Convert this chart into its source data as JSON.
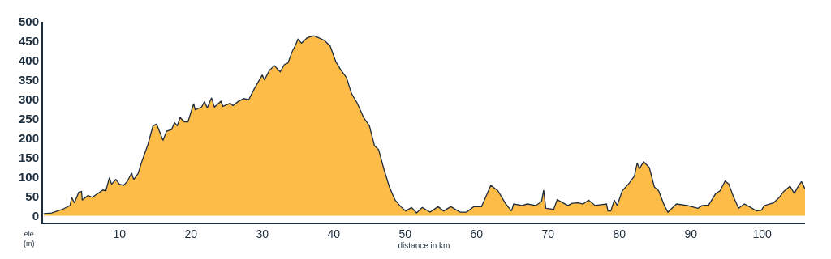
{
  "chart_data": {
    "type": "area",
    "xlabel": "distance in km",
    "ylabel": "ele\n(m)",
    "x": [
      -0.6,
      0.5,
      2,
      3.1,
      3.3,
      3.7,
      4.3,
      4.7,
      4.8,
      5.6,
      6.2,
      7.7,
      8.1,
      8.6,
      8.9,
      9.5,
      10,
      10.6,
      11.1,
      11.7,
      12,
      12.6,
      13.2,
      14,
      14.7,
      15.2,
      15.6,
      16.1,
      16.6,
      17.3,
      17.7,
      18.1,
      18.5,
      19.1,
      19.6,
      20,
      20.4,
      20.6,
      21.5,
      21.9,
      22.3,
      22.9,
      23.3,
      24.2,
      24.5,
      25.5,
      25.9,
      26.6,
      27.4,
      28.1,
      28.9,
      30,
      30.3,
      31,
      31.7,
      32.5,
      33.1,
      33.6,
      34.2,
      34.6,
      35,
      35.5,
      36.3,
      37.2,
      37.9,
      38.7,
      39.5,
      40.3,
      41,
      41.8,
      42.5,
      43.3,
      44.2,
      45,
      45.7,
      46.3,
      47,
      47.8,
      48.6,
      49.4,
      50.1,
      50.9,
      51.6,
      52.4,
      53.5,
      54.6,
      55.4,
      56.4,
      57.7,
      58.6,
      59.6,
      60.7,
      61.1,
      62,
      63,
      64.1,
      64.9,
      65.2,
      66.4,
      67.1,
      68.3,
      69.1,
      69.4,
      69.7,
      70.8,
      71.3,
      72.1,
      72.8,
      73.4,
      74.2,
      74.9,
      75.7,
      76.6,
      78.2,
      78.4,
      78.8,
      79.3,
      79.7,
      80.4,
      81.4,
      82.1,
      82.5,
      82.8,
      83.4,
      84.2,
      84.9,
      85.5,
      86.3,
      86.8,
      88,
      89.5,
      91,
      91.6,
      92.5,
      93.5,
      94.1,
      94.8,
      95.3,
      96,
      96.7,
      97.5,
      98.2,
      99.2,
      99.9,
      100.3,
      101.6,
      102.4,
      103,
      103.9,
      104.5,
      104.9,
      105.5,
      106
    ],
    "series": [
      {
        "color": "#fdbb48",
        "values": [
          5,
          7,
          16,
          26,
          47,
          33,
          60,
          62,
          40,
          52,
          47,
          66,
          64,
          98,
          81,
          93,
          81,
          78,
          88,
          110,
          93,
          108,
          143,
          184,
          232,
          236,
          218,
          194,
          218,
          222,
          240,
          232,
          253,
          242,
          242,
          266,
          289,
          273,
          280,
          294,
          278,
          304,
          280,
          295,
          282,
          290,
          284,
          294,
          302,
          299,
          328,
          363,
          350,
          375,
          387,
          371,
          390,
          394,
          424,
          438,
          455,
          445,
          459,
          464,
          459,
          452,
          438,
          397,
          376,
          356,
          315,
          290,
          253,
          232,
          181,
          170,
          122,
          74,
          40,
          23,
          12,
          21,
          7,
          21,
          9,
          23,
          12,
          23,
          9,
          9,
          23,
          23,
          40,
          78,
          64,
          30,
          12,
          30,
          26,
          30,
          26,
          36,
          66,
          19,
          16,
          41,
          33,
          26,
          32,
          33,
          30,
          40,
          26,
          30,
          12,
          12,
          40,
          26,
          64,
          84,
          102,
          136,
          121,
          139,
          124,
          74,
          64,
          26,
          9,
          30,
          26,
          19,
          26,
          27,
          57,
          64,
          89,
          82,
          48,
          19,
          30,
          23,
          12,
          14,
          26,
          33,
          47,
          62,
          76,
          57,
          71,
          88,
          69
        ]
      }
    ],
    "xlim": [
      -0.7,
      106
    ],
    "ylim": [
      -18,
      500
    ],
    "xticks": [
      10,
      20,
      30,
      40,
      50,
      60,
      70,
      80,
      90,
      100
    ],
    "yticks": [
      0,
      50,
      100,
      150,
      200,
      250,
      300,
      350,
      400,
      450,
      500
    ]
  }
}
